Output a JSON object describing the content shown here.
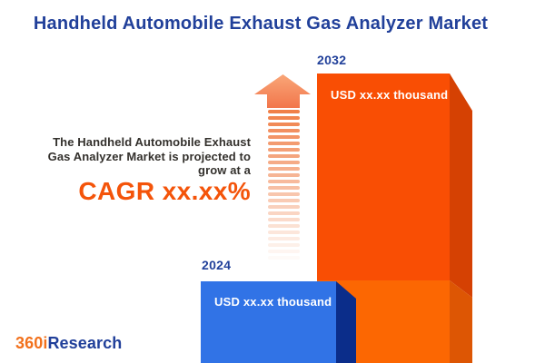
{
  "title": "Handheld Automobile Exhaust Gas Analyzer Market",
  "intro": {
    "line1": "The Handheld Automobile Exhaust",
    "line2": "Gas Analyzer Market is projected to",
    "line3": "grow at a",
    "cagr": "CAGR xx.xx%"
  },
  "chart_data": {
    "type": "bar",
    "title": "Handheld Automobile Exhaust Gas Analyzer Market",
    "categories": [
      "2024",
      "2032"
    ],
    "value_labels": [
      "USD xx.xx thousand",
      "USD xx.xx thousand"
    ],
    "growth_annotation": "CAGR xx.xx%",
    "axes": "none",
    "legend": "none",
    "style": "3d-infographic-bars, 2024 blue, 2032 orange, upward striped arrow between text and bars"
  },
  "bars": {
    "b2024": {
      "year": "2024",
      "value": "USD xx.xx thousand"
    },
    "b2032": {
      "year": "2032",
      "value": "USD xx.xx thousand"
    }
  },
  "logo": {
    "prefix": "360i",
    "suffix": "Research"
  },
  "colors": {
    "navy": "#21409a",
    "text-dark": "#33302c",
    "cagr-orange": "#f4540a",
    "blue-front": "#3173e6",
    "blue-side": "#0b2d8a",
    "orange-front-top": "#f94e04",
    "orange-front-bottom": "#fc6702",
    "orange-side-top": "#d54103",
    "orange-side-bottom": "#dd5604",
    "arrow-head-light": "#f9a678",
    "arrow-head-dark": "#f2764b",
    "stripe": "#f08049",
    "logo-orange": "#f2711c"
  }
}
